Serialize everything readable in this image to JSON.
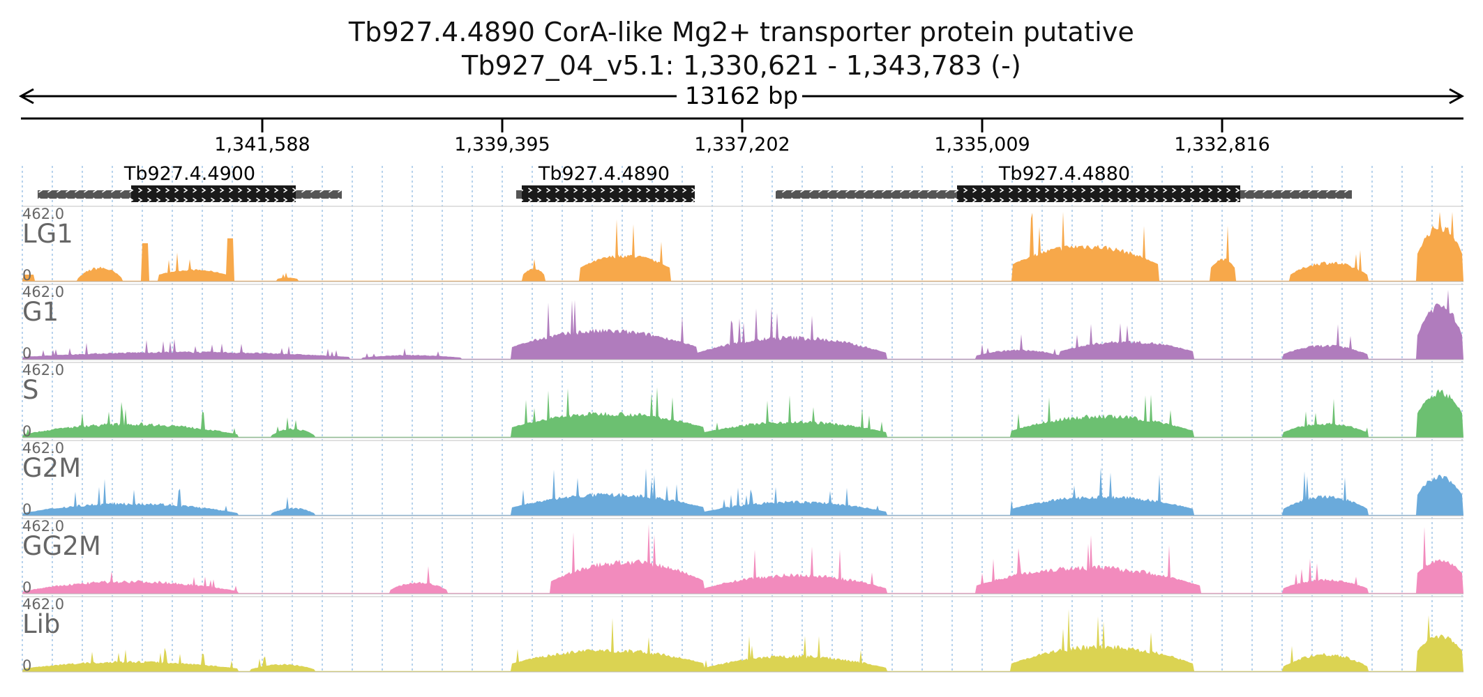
{
  "header": {
    "title": "Tb927.4.4890  CorA-like Mg2+ transporter protein  putative",
    "region": "Tb927_04_v5.1: 1,330,621 - 1,343,783 (-)",
    "span_label": "13162 bp"
  },
  "ruler": {
    "ticks": [
      "1,341,588",
      "1,339,395",
      "1,337,202",
      "1,335,009",
      "1,332,816"
    ]
  },
  "genes": [
    {
      "name": "Tb927.4.4900"
    },
    {
      "name": "Tb927.4.4890"
    },
    {
      "name": "Tb927.4.4880"
    }
  ],
  "tracks": [
    {
      "name": "LG1",
      "color": "#f7a84a",
      "max_label": "462.0",
      "min_label": "0"
    },
    {
      "name": "G1",
      "color": "#b07cbd",
      "max_label": "462.0",
      "min_label": "0"
    },
    {
      "name": "S",
      "color": "#6cc071",
      "max_label": "462.0",
      "min_label": "0"
    },
    {
      "name": "G2M",
      "color": "#6aaadb",
      "max_label": "462.0",
      "min_label": "0"
    },
    {
      "name": "GG2M",
      "color": "#f28bbd",
      "max_label": "462.0",
      "min_label": "0"
    },
    {
      "name": "Lib",
      "color": "#dbd352",
      "max_label": "462.0",
      "min_label": "0"
    }
  ],
  "colors": {
    "axis": "#000000",
    "grid": "#9ec3e6",
    "gene_body": "#1a1a1a",
    "utr": "#555555",
    "track_label": "#666666"
  }
}
